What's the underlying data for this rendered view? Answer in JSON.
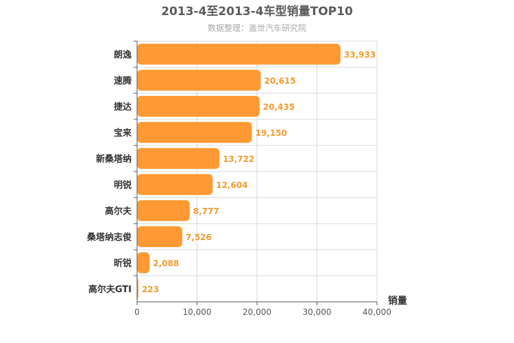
{
  "colors": {
    "bar": "#FF9933",
    "label": "#F29B2E",
    "grid": "#d9d9d9",
    "axis": "#555555"
  },
  "chart_data": {
    "type": "bar",
    "orientation": "horizontal",
    "title": "2013-4至2013-4车型销量TOP10",
    "subtitle": "数据整理：盖世汽车研究院",
    "xlabel": "销量",
    "ylabel": "",
    "xlim": [
      0,
      40000
    ],
    "ticks": [
      "0",
      "10,000",
      "20,000",
      "30,000",
      "40,000"
    ],
    "tick_values": [
      0,
      10000,
      20000,
      30000,
      40000
    ],
    "grid": true,
    "categories": [
      "朗逸",
      "速腾",
      "捷达",
      "宝来",
      "新桑塔纳",
      "明锐",
      "高尔夫",
      "桑塔纳志俊",
      "昕锐",
      "高尔夫GTI"
    ],
    "values": [
      33933,
      20615,
      20435,
      19150,
      13722,
      12604,
      8777,
      7526,
      2088,
      223
    ],
    "value_labels": [
      "33,933",
      "20,615",
      "20,435",
      "19,150",
      "13,722",
      "12,604",
      "8,777",
      "7,526",
      "2,088",
      "223"
    ]
  }
}
